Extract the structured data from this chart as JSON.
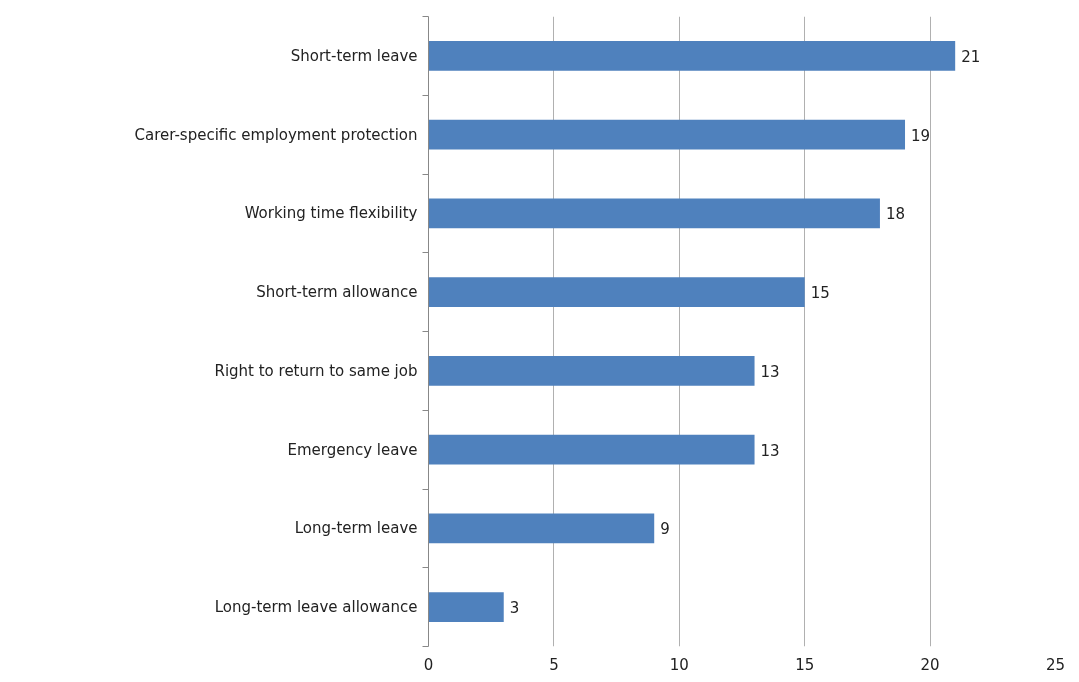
{
  "chart_data": {
    "type": "bar",
    "orientation": "horizontal",
    "categories": [
      "Short-term leave",
      "Carer-specific employment protection",
      "Working time flexibility",
      "Short-term allowance",
      "Right to return to same job",
      "Emergency leave",
      "Long-term leave",
      "Long-term leave allowance"
    ],
    "values": [
      21,
      19,
      18,
      15,
      13,
      13,
      9,
      3
    ],
    "color": "#4f81bd",
    "xlim": [
      0,
      25
    ],
    "xticks": [
      0,
      5,
      10,
      15,
      20,
      25
    ],
    "grid": "x",
    "data_labels": true
  }
}
